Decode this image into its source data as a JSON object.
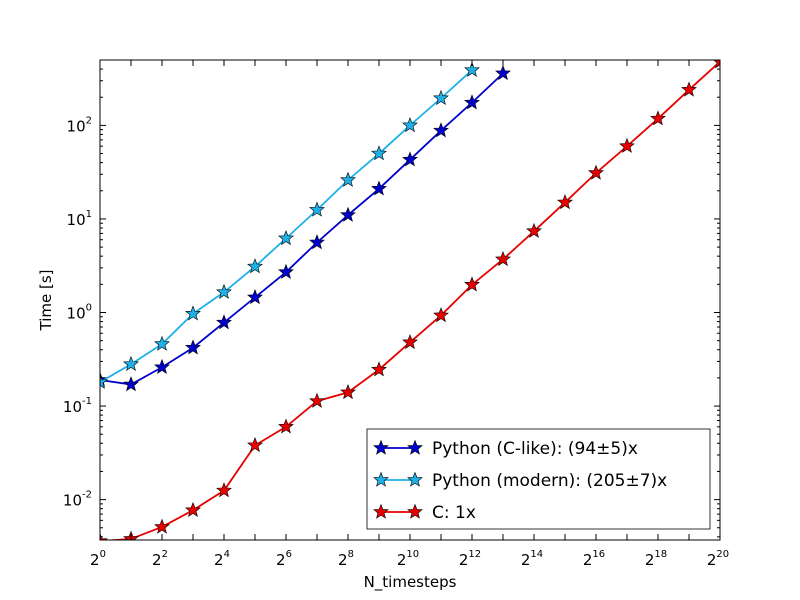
{
  "chart_data": {
    "type": "line",
    "title": "",
    "xlabel": "N_timesteps",
    "ylabel": "Time [s]",
    "xscale": "log2",
    "yscale": "log10",
    "xlim": [
      1,
      1048576
    ],
    "ylim": [
      0.0037,
      500
    ],
    "grid": false,
    "legend_position": "lower-right",
    "x_ticks": [
      {
        "value": 1,
        "base": "2",
        "exp": "0"
      },
      {
        "value": 4,
        "base": "2",
        "exp": "2"
      },
      {
        "value": 16,
        "base": "2",
        "exp": "4"
      },
      {
        "value": 64,
        "base": "2",
        "exp": "6"
      },
      {
        "value": 256,
        "base": "2",
        "exp": "8"
      },
      {
        "value": 1024,
        "base": "2",
        "exp": "10"
      },
      {
        "value": 4096,
        "base": "2",
        "exp": "12"
      },
      {
        "value": 16384,
        "base": "2",
        "exp": "14"
      },
      {
        "value": 65536,
        "base": "2",
        "exp": "16"
      },
      {
        "value": 262144,
        "base": "2",
        "exp": "18"
      },
      {
        "value": 1048576,
        "base": "2",
        "exp": "20"
      }
    ],
    "y_ticks": [
      {
        "value": 0.01,
        "base": "10",
        "exp": "-2"
      },
      {
        "value": 0.1,
        "base": "10",
        "exp": "-1"
      },
      {
        "value": 1,
        "base": "10",
        "exp": "0"
      },
      {
        "value": 10,
        "base": "10",
        "exp": "1"
      },
      {
        "value": 100,
        "base": "10",
        "exp": "2"
      }
    ],
    "series": [
      {
        "name": "Python (C-like): (94±5)x",
        "color": "#0000cc",
        "marker": "star",
        "x": [
          1,
          2,
          4,
          8,
          16,
          32,
          64,
          128,
          256,
          512,
          1024,
          2048,
          4096,
          8192
        ],
        "y": [
          0.19,
          0.17,
          0.26,
          0.42,
          0.78,
          1.45,
          2.7,
          5.6,
          11,
          21,
          43,
          88,
          175,
          360
        ]
      },
      {
        "name": "Python (modern): (205±7)x",
        "color": "#1eb0e6",
        "marker": "star",
        "x": [
          1,
          2,
          4,
          8,
          16,
          32,
          64,
          128,
          256,
          512,
          1024,
          2048,
          4096
        ],
        "y": [
          0.18,
          0.28,
          0.46,
          0.97,
          1.65,
          3.1,
          6.2,
          12.5,
          26,
          50,
          100,
          195,
          390
        ]
      },
      {
        "name": "C: 1x",
        "color": "#e60000",
        "marker": "star",
        "x": [
          1,
          2,
          4,
          8,
          16,
          32,
          64,
          128,
          256,
          512,
          1024,
          2048,
          4096,
          8192,
          16384,
          32768,
          65536,
          131072,
          262144,
          524288,
          1048576
        ],
        "y": [
          0.0036,
          0.0038,
          0.0051,
          0.0077,
          0.0125,
          0.038,
          0.06,
          0.113,
          0.14,
          0.245,
          0.48,
          0.93,
          1.98,
          3.7,
          7.4,
          15,
          31,
          60,
          118,
          240,
          480
        ]
      }
    ]
  }
}
